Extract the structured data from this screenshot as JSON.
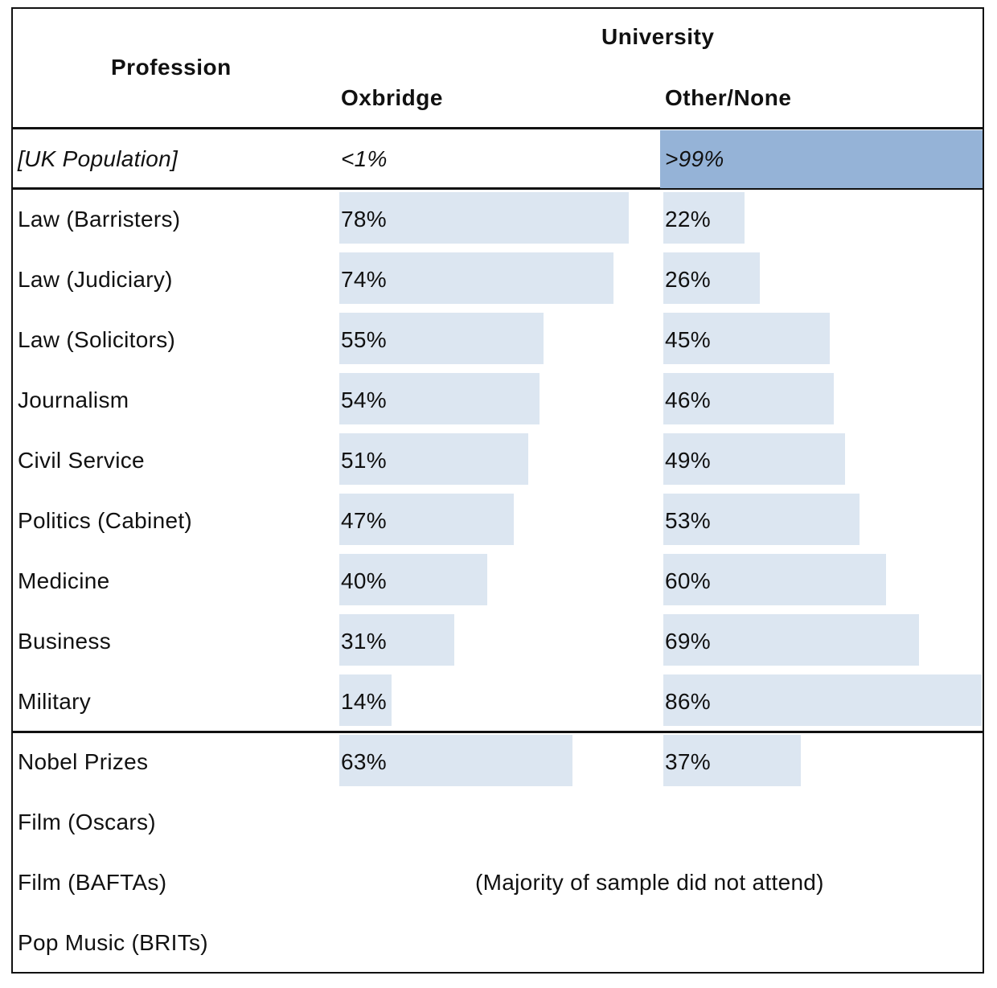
{
  "chart_data": {
    "type": "table",
    "header": {
      "row_label": "Profession",
      "group_label": "University",
      "columns": [
        "Oxbridge",
        "Other/None"
      ]
    },
    "reference_row": {
      "label": "[UK Population]",
      "oxbridge": "<1%",
      "other": ">99%"
    },
    "rows": [
      {
        "label": "Law (Barristers)",
        "oxbridge": 78,
        "other": 22
      },
      {
        "label": "Law (Judiciary)",
        "oxbridge": 74,
        "other": 26
      },
      {
        "label": "Law (Solicitors)",
        "oxbridge": 55,
        "other": 45
      },
      {
        "label": "Journalism",
        "oxbridge": 54,
        "other": 46
      },
      {
        "label": "Civil Service",
        "oxbridge": 51,
        "other": 49
      },
      {
        "label": "Politics (Cabinet)",
        "oxbridge": 47,
        "other": 53
      },
      {
        "label": "Medicine",
        "oxbridge": 40,
        "other": 60
      },
      {
        "label": "Business",
        "oxbridge": 31,
        "other": 69
      },
      {
        "label": "Military",
        "oxbridge": 14,
        "other": 86
      }
    ],
    "other_rows": [
      {
        "label": "Nobel Prizes",
        "oxbridge": 63,
        "other": 37
      },
      {
        "label": "Film (Oscars)"
      },
      {
        "label": "Film (BAFTAs)"
      },
      {
        "label": "Pop Music (BRITs)"
      }
    ],
    "note": "(Majority of sample did not attend)",
    "colors": {
      "bar": "#dce6f1",
      "highlight": "#95b3d7"
    }
  }
}
